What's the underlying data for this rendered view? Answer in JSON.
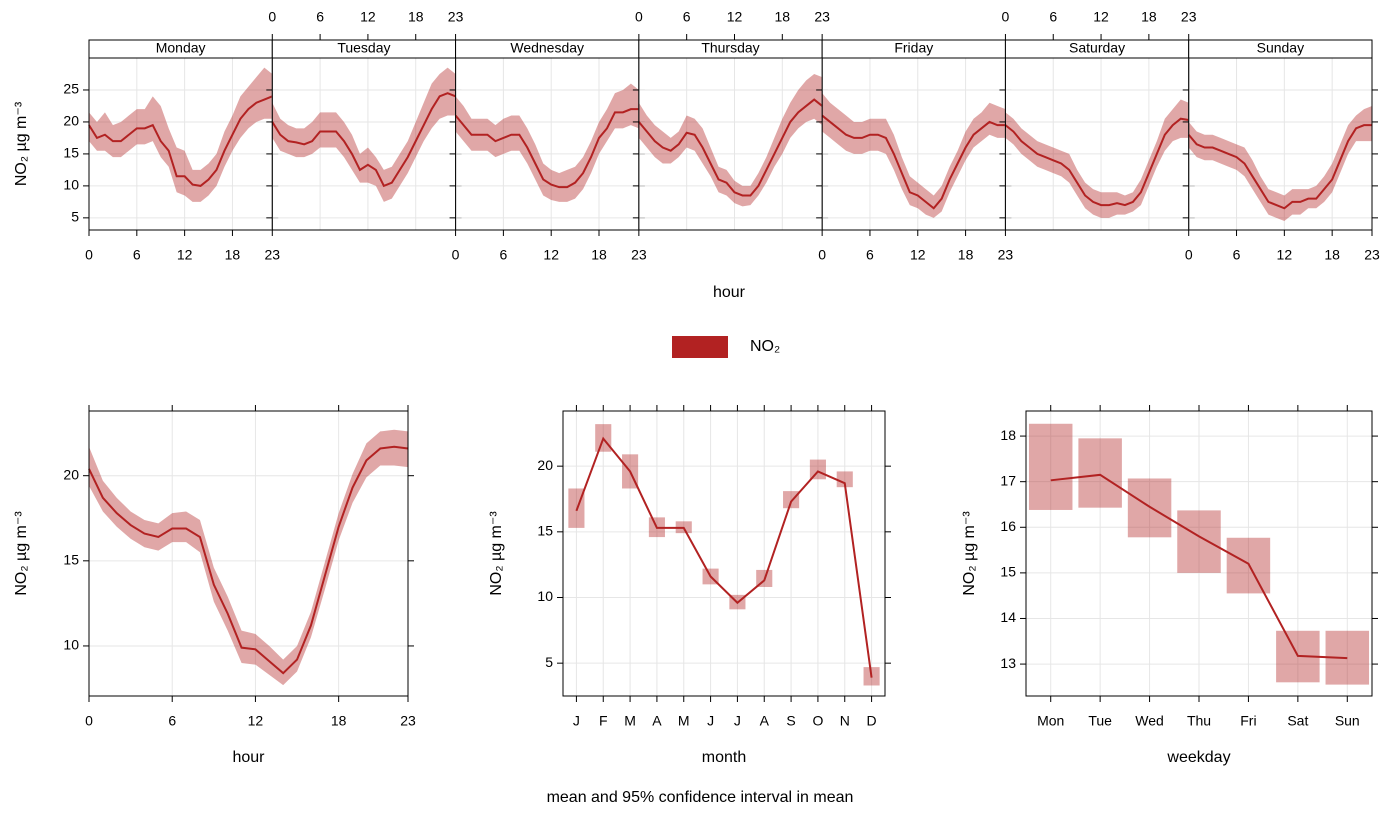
{
  "legend_title_color": "#b22222",
  "caption": "mean and 95% confidence interval in mean",
  "chart_data": [
    {
      "type": "line",
      "xlabel": "hour",
      "ylabel": "NO₂ µg m⁻³",
      "x": [
        0,
        1,
        2,
        3,
        4,
        5,
        6,
        7,
        8,
        9,
        10,
        11,
        12,
        13,
        14,
        15,
        16,
        17,
        18,
        19,
        20,
        21,
        22,
        23
      ],
      "xlim": [
        0,
        23
      ],
      "xticks": [
        0,
        6,
        12,
        18,
        23
      ],
      "ylim": [
        3.1,
        30
      ],
      "yticks": [
        5,
        10,
        15,
        20,
        25
      ],
      "grid": true,
      "series": [
        {
          "name": "NO₂",
          "color": "#b22222",
          "panels": [
            {
              "title": "Monday",
              "values": [
                19.5,
                17.5,
                18,
                17,
                17,
                18,
                19,
                19,
                19.5,
                17,
                15.5,
                11.5,
                11.5,
                10.2,
                10,
                11,
                12.5,
                15.5,
                18,
                20.5,
                22,
                23,
                23.5,
                24
              ],
              "lower": [
                17,
                15.5,
                15.5,
                14.5,
                14.5,
                15.5,
                16.5,
                16.5,
                17,
                14.5,
                13,
                9,
                8.5,
                7.5,
                7.5,
                8.5,
                10,
                13,
                15.5,
                17.5,
                19,
                20,
                20.5,
                20.5
              ],
              "upper": [
                21.5,
                20,
                21.5,
                19.5,
                20,
                21,
                22,
                22,
                24,
                22.5,
                19,
                16,
                15.5,
                12.5,
                12.5,
                13.5,
                15,
                18.5,
                21,
                24,
                25.5,
                27,
                28.5,
                27.5
              ]
            },
            {
              "title": "Tuesday",
              "values": [
                20,
                18,
                17,
                16.8,
                16.5,
                17,
                18.5,
                18.5,
                18.5,
                17,
                15,
                12.5,
                13.3,
                12.5,
                10,
                10.5,
                12.5,
                14.5,
                17,
                19.5,
                22,
                24,
                24.5,
                24
              ],
              "lower": [
                17.5,
                15.5,
                15,
                14.5,
                14.5,
                15,
                16,
                16,
                16,
                14.5,
                12.5,
                10.5,
                10.5,
                10,
                7.5,
                8,
                10,
                12,
                14.5,
                17,
                19,
                20.5,
                21,
                21
              ],
              "upper": [
                23,
                20.5,
                19.5,
                19,
                19,
                20,
                21.5,
                21.5,
                21.5,
                20,
                18,
                15,
                16,
                14.5,
                12.5,
                13,
                15,
                17,
                20,
                23,
                26,
                27.5,
                28.5,
                27.5
              ]
            },
            {
              "title": "Wednesday",
              "values": [
                21,
                19.5,
                18,
                18,
                18,
                17,
                17.5,
                18,
                18,
                16,
                13.5,
                11,
                10.2,
                9.8,
                9.8,
                10.5,
                12,
                14.5,
                17.5,
                19,
                21.5,
                21.5,
                22,
                22
              ],
              "lower": [
                18.5,
                17,
                15.5,
                15.5,
                15.5,
                14.5,
                15,
                15.5,
                15.5,
                13.5,
                11,
                8.5,
                7.8,
                7.5,
                7.5,
                8,
                9.5,
                12,
                15,
                17,
                19,
                19,
                19.5,
                19
              ],
              "upper": [
                24,
                22.5,
                20.5,
                20.5,
                20.5,
                19.5,
                20.5,
                21,
                21,
                19,
                16.5,
                13.5,
                12.5,
                12,
                12.5,
                13,
                14.5,
                17,
                20,
                22,
                24.5,
                25,
                26,
                25
              ]
            },
            {
              "title": "Thursday",
              "values": [
                20,
                18.5,
                17,
                16,
                15.5,
                16.5,
                18.3,
                18,
                16,
                13.5,
                11,
                10.5,
                9,
                8.5,
                8.5,
                10,
                12.5,
                15,
                17.5,
                20,
                21.5,
                22.5,
                23.5,
                22.5
              ],
              "lower": [
                17.5,
                16,
                14.5,
                13.5,
                13.5,
                14.5,
                16,
                15.5,
                13.5,
                11.5,
                9,
                8.5,
                7.3,
                6.8,
                7,
                8.5,
                10.5,
                13,
                15,
                17.5,
                19,
                20,
                20.5,
                19.5
              ],
              "upper": [
                23,
                21,
                19.5,
                18.5,
                17.5,
                18.5,
                21,
                20.5,
                19,
                16,
                13,
                12.5,
                10.8,
                10,
                10,
                12,
                14.5,
                17.5,
                20.5,
                23,
                25,
                26.5,
                27.5,
                27
              ]
            },
            {
              "title": "Friday",
              "values": [
                21,
                20,
                19,
                18,
                17.5,
                17.5,
                18,
                18,
                17.5,
                15,
                12,
                9,
                8.5,
                7.5,
                6.5,
                8,
                11,
                13.5,
                16,
                18,
                19,
                20,
                19.5,
                19.5
              ],
              "lower": [
                18.5,
                17.5,
                16.5,
                15.5,
                15,
                15,
                15.5,
                15.5,
                15,
                12.5,
                9.5,
                7,
                6.5,
                5.5,
                5,
                6,
                9,
                11.5,
                14,
                16,
                17,
                18,
                17.5,
                17.5
              ],
              "upper": [
                24.5,
                23,
                22,
                21,
                20,
                20,
                20.5,
                20.5,
                20.5,
                18,
                14.5,
                11.5,
                10.5,
                9.5,
                8.5,
                10,
                13,
                15.5,
                18.5,
                20.5,
                21.5,
                23,
                22.5,
                22
              ]
            },
            {
              "title": "Saturday",
              "values": [
                19.5,
                18.5,
                17,
                16,
                15,
                14.5,
                14,
                13.5,
                12.5,
                10.5,
                8.5,
                7.5,
                7,
                7,
                7.3,
                7,
                7.5,
                9,
                12,
                15,
                18,
                19.5,
                20.5,
                20.3
              ],
              "lower": [
                17.5,
                16.5,
                15,
                14,
                13,
                12.5,
                12,
                11.5,
                10.5,
                8.5,
                6.5,
                5.5,
                5,
                5,
                5.5,
                5.5,
                6,
                7,
                10,
                13,
                15.5,
                17,
                17.5,
                17.5
              ],
              "upper": [
                21.5,
                20.5,
                19,
                18,
                17,
                16.5,
                16,
                15.5,
                15,
                12.5,
                10.5,
                9.5,
                9,
                9,
                9,
                8.5,
                9,
                11,
                14,
                17,
                20.5,
                22,
                23.5,
                23
              ]
            },
            {
              "title": "Sunday",
              "values": [
                18,
                16.5,
                16,
                16,
                15.5,
                15,
                14.5,
                13.5,
                11.5,
                9.5,
                7.5,
                7,
                6.5,
                7.5,
                7.5,
                8,
                8,
                9.5,
                11,
                14,
                17,
                19,
                19.5,
                19.5
              ],
              "lower": [
                16,
                14.5,
                14,
                14,
                13.5,
                13,
                12.5,
                11.5,
                9.5,
                7.5,
                5.5,
                5,
                4.5,
                5.5,
                5.5,
                6.5,
                6.5,
                7.5,
                9,
                12,
                15,
                17,
                17,
                17
              ],
              "upper": [
                20,
                18.5,
                18,
                18,
                17.5,
                17,
                16.5,
                16,
                14,
                11.5,
                9.5,
                9,
                8.5,
                9.5,
                9.5,
                9.5,
                10,
                11.5,
                13.5,
                16.5,
                19.5,
                21,
                22,
                22.5
              ]
            }
          ]
        }
      ]
    },
    {
      "type": "line",
      "xlabel": "hour",
      "ylabel": "NO₂ µg m⁻³",
      "color": "#b22222",
      "x": [
        0,
        1,
        2,
        3,
        4,
        5,
        6,
        7,
        8,
        9,
        10,
        11,
        12,
        13,
        14,
        15,
        16,
        17,
        18,
        19,
        20,
        21,
        22,
        23
      ],
      "xlim": [
        0,
        23
      ],
      "xticks": [
        0,
        6,
        12,
        18,
        23
      ],
      "ylim": [
        7.06,
        23.8
      ],
      "yticks": [
        10,
        15,
        20
      ],
      "grid": true,
      "values": [
        20.4,
        18.7,
        17.8,
        17.1,
        16.6,
        16.4,
        16.9,
        16.9,
        16.4,
        13.6,
        11.9,
        9.9,
        9.8,
        9.1,
        8.4,
        9.2,
        11.2,
        14.1,
        17,
        19.3,
        20.9,
        21.6,
        21.7,
        21.6
      ],
      "lower": [
        19.4,
        17.9,
        17,
        16.3,
        15.8,
        15.6,
        16.1,
        16.1,
        15.5,
        12.6,
        10.9,
        9,
        8.9,
        8.3,
        7.7,
        8.5,
        10.5,
        13.3,
        16.2,
        18.4,
        19.9,
        20.6,
        20.6,
        20.5
      ],
      "upper": [
        21.7,
        19.7,
        18.7,
        17.9,
        17.4,
        17.2,
        17.8,
        17.9,
        17.4,
        14.6,
        12.9,
        10.9,
        10.7,
        10,
        9.2,
        10,
        12,
        14.9,
        17.8,
        20.1,
        21.9,
        22.6,
        22.7,
        22.6
      ]
    },
    {
      "type": "interval",
      "xlabel": "month",
      "ylabel": "NO₂ µg m⁻³",
      "color": "#b22222",
      "categories": [
        "J",
        "F",
        "M",
        "A",
        "M",
        "J",
        "J",
        "A",
        "S",
        "O",
        "N",
        "D"
      ],
      "ylim": [
        2.5,
        24.2
      ],
      "yticks": [
        5,
        10,
        15,
        20
      ],
      "grid": true,
      "values": [
        16.6,
        22.1,
        19.6,
        15.3,
        15.3,
        11.6,
        9.6,
        11.3,
        17.3,
        19.6,
        18.7,
        3.9
      ],
      "lower": [
        15.3,
        21.1,
        18.3,
        14.6,
        14.9,
        11,
        9.1,
        10.8,
        16.8,
        19,
        18.4,
        3.3
      ],
      "upper": [
        18.3,
        23.2,
        20.9,
        16.1,
        15.8,
        12.2,
        10.2,
        12.1,
        18.1,
        20.5,
        19.6,
        4.7
      ]
    },
    {
      "type": "interval",
      "xlabel": "weekday",
      "ylabel": "NO₂ µg m⁻³",
      "color": "#b22222",
      "categories": [
        "Mon",
        "Tue",
        "Wed",
        "Thu",
        "Fri",
        "Sat",
        "Sun"
      ],
      "ylim": [
        12.3,
        18.55
      ],
      "yticks": [
        13,
        14,
        15,
        16,
        17,
        18
      ],
      "grid": true,
      "values": [
        17.03,
        17.15,
        16.45,
        15.8,
        15.2,
        13.18,
        13.13
      ],
      "lower": [
        16.38,
        16.43,
        15.78,
        15.0,
        14.55,
        12.6,
        12.55
      ],
      "upper": [
        18.27,
        17.95,
        17.07,
        16.37,
        15.77,
        13.73,
        13.73
      ]
    }
  ]
}
